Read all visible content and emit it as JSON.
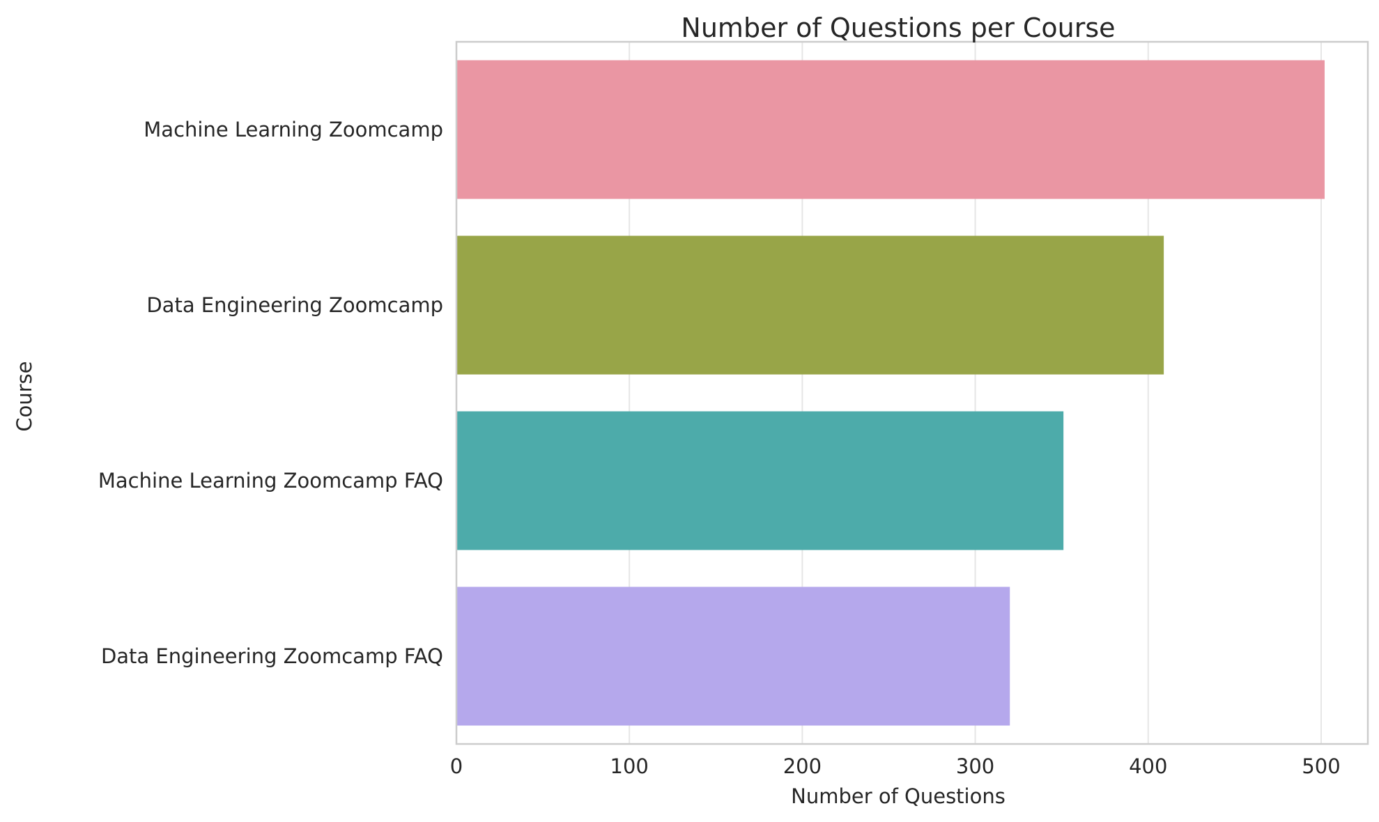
{
  "chart_data": {
    "type": "bar",
    "orientation": "horizontal",
    "title": "Number of Questions per Course",
    "xlabel": "Number of Questions",
    "ylabel": "Course",
    "categories": [
      "Machine Learning Zoomcamp",
      "Data Engineering Zoomcamp",
      "Machine Learning Zoomcamp FAQ",
      "Data Engineering Zoomcamp FAQ"
    ],
    "values": [
      502,
      409,
      351,
      320
    ],
    "colors": [
      "#ea96a3",
      "#98a548",
      "#4dabaa",
      "#b5a8ec"
    ],
    "xlim": [
      0,
      527
    ],
    "xticks": [
      0,
      100,
      200,
      300,
      400,
      500
    ],
    "grid": true,
    "legend": "none"
  }
}
